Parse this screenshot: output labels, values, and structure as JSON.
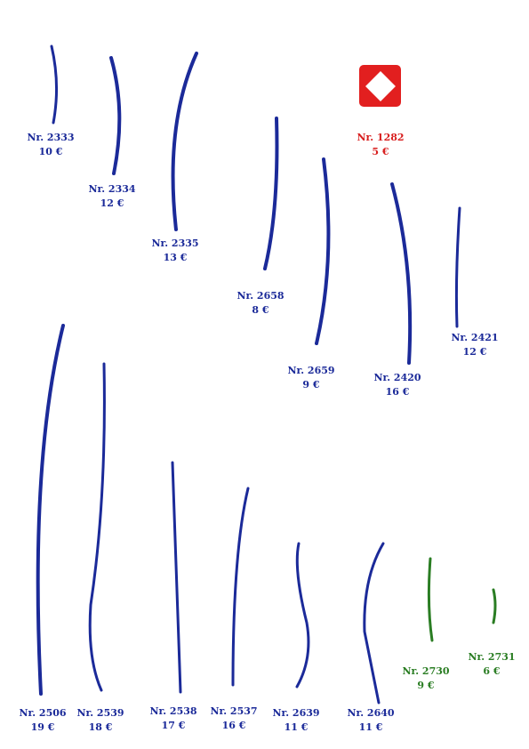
{
  "items": [
    {
      "nr": "Nr. 2333",
      "price": "10 €",
      "color": "blue"
    },
    {
      "nr": "Nr. 2334",
      "price": "12 €",
      "color": "blue"
    },
    {
      "nr": "Nr. 2335",
      "price": "13 €",
      "color": "blue"
    },
    {
      "nr": "Nr. 2658",
      "price": "8 €",
      "color": "blue"
    },
    {
      "nr": "Nr. 2659",
      "price": "9 €",
      "color": "blue"
    },
    {
      "nr": "Nr. 2420",
      "price": "16 €",
      "color": "blue"
    },
    {
      "nr": "Nr. 2421",
      "price": "12 €",
      "color": "blue"
    },
    {
      "nr": "Nr. 1282",
      "price": "5 €",
      "color": "red"
    },
    {
      "nr": "Nr. 2506",
      "price": "19 €",
      "color": "blue"
    },
    {
      "nr": "Nr. 2539",
      "price": "18 €",
      "color": "blue"
    },
    {
      "nr": "Nr. 2538",
      "price": "17 €",
      "color": "blue"
    },
    {
      "nr": "Nr. 2537",
      "price": "16 €",
      "color": "blue"
    },
    {
      "nr": "Nr. 2639",
      "price": "11 €",
      "color": "blue"
    },
    {
      "nr": "Nr. 2640",
      "price": "11 €",
      "color": "blue"
    },
    {
      "nr": "Nr. 2730",
      "price": "9 €",
      "color": "green"
    },
    {
      "nr": "Nr. 2731",
      "price": "6 €",
      "color": "green"
    }
  ],
  "colors": {
    "blue": "#1b2a99",
    "red": "#d81e1e",
    "green": "#2a7d23"
  },
  "logo": {
    "icon": "red-square-white-diamond-logo"
  }
}
